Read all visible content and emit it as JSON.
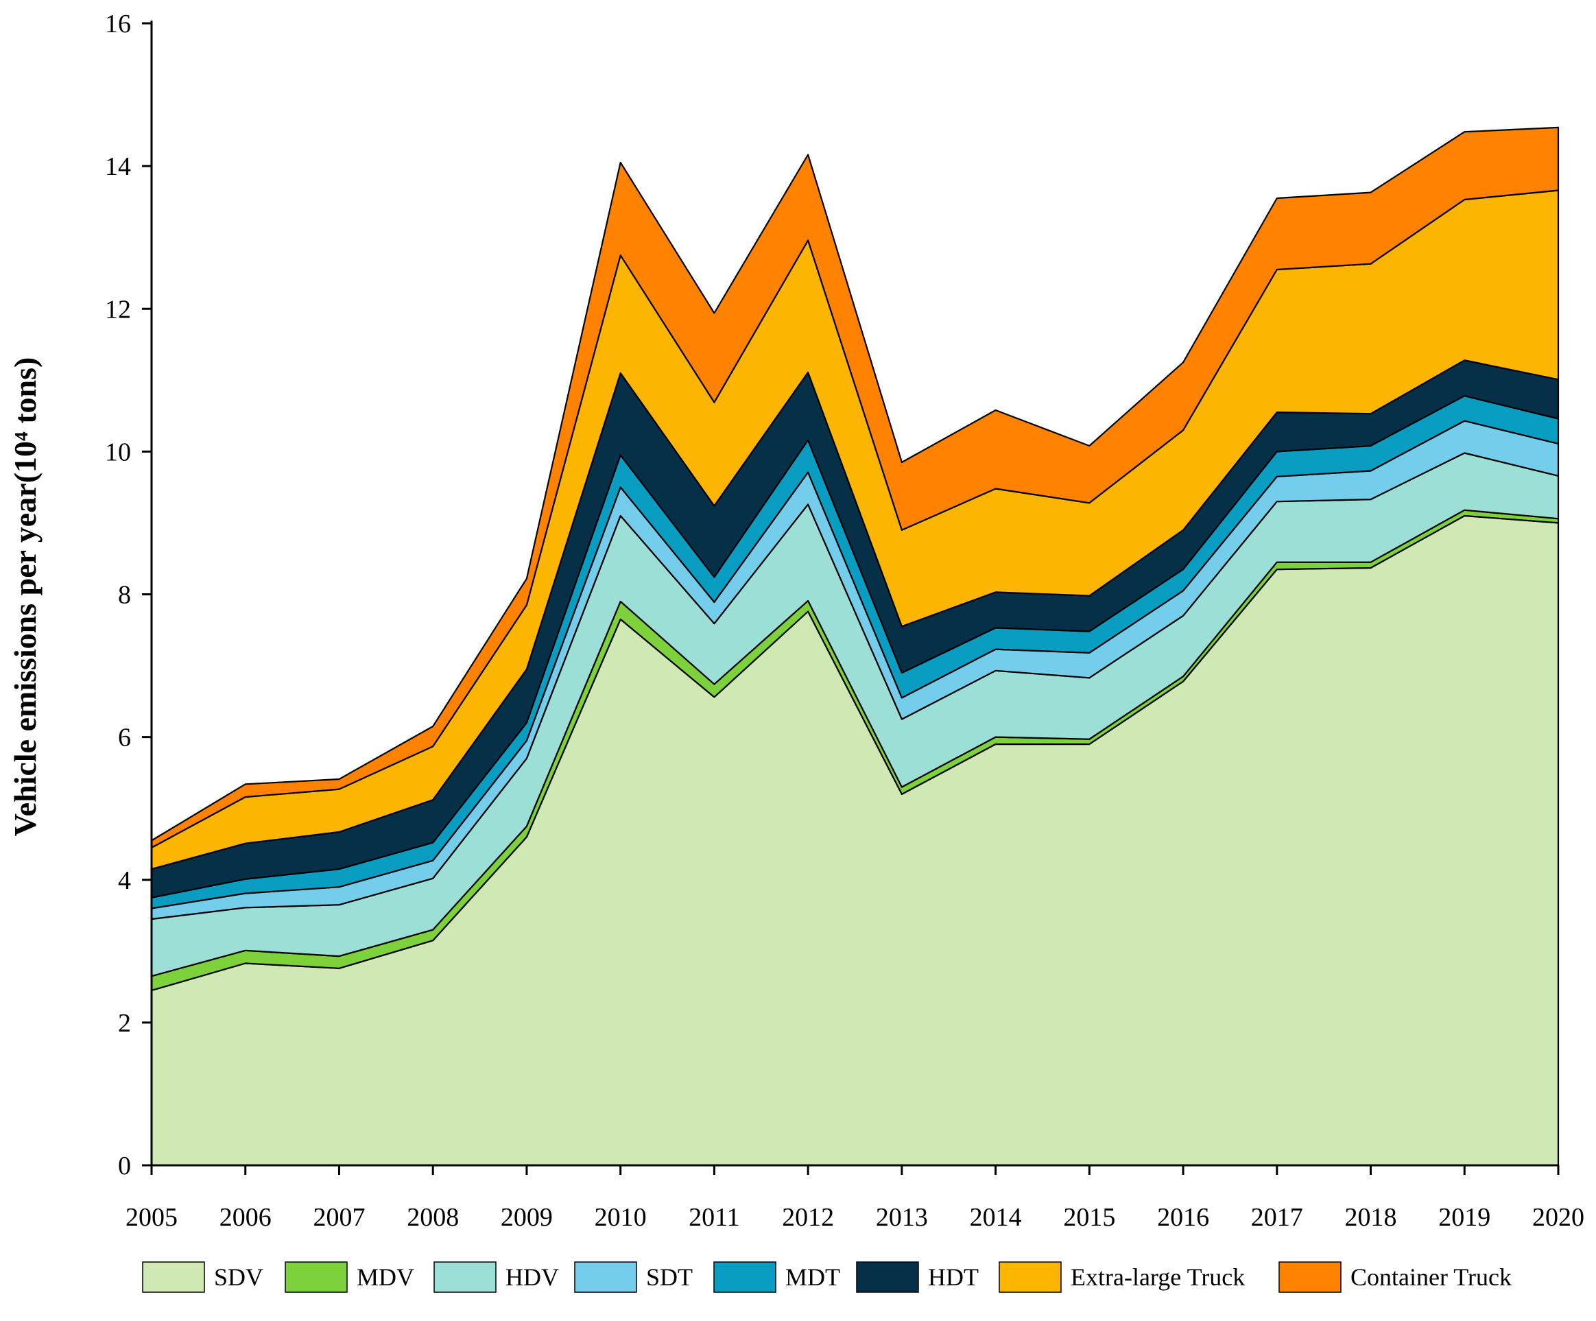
{
  "chart_data": {
    "type": "area",
    "stacked": true,
    "ylabel": "Vehicle emissions per year(10⁴ tons)",
    "xlabel": "",
    "title": "",
    "ylim": [
      0,
      16
    ],
    "yticks": [
      0,
      2,
      4,
      6,
      8,
      10,
      12,
      14,
      16
    ],
    "x": [
      "2005",
      "2006",
      "2007",
      "2008",
      "2009",
      "2010",
      "2011",
      "2012",
      "2013",
      "2014",
      "2015",
      "2016",
      "2017",
      "2018",
      "2019",
      "2020"
    ],
    "series": [
      {
        "name": "SDV",
        "color": "#D0E9B4",
        "values": [
          2.45,
          2.83,
          2.76,
          3.15,
          4.6,
          7.65,
          6.56,
          7.76,
          5.2,
          5.9,
          5.9,
          6.78,
          8.35,
          8.37,
          9.1,
          9.0
        ]
      },
      {
        "name": "MDV",
        "color": "#7DD13A",
        "values": [
          0.2,
          0.18,
          0.17,
          0.15,
          0.15,
          0.25,
          0.18,
          0.15,
          0.1,
          0.1,
          0.07,
          0.07,
          0.1,
          0.08,
          0.08,
          0.06
        ]
      },
      {
        "name": "HDV",
        "color": "#9CDFD6",
        "values": [
          0.8,
          0.6,
          0.72,
          0.72,
          0.95,
          1.2,
          0.85,
          1.35,
          0.95,
          0.93,
          0.86,
          0.85,
          0.85,
          0.88,
          0.8,
          0.6
        ]
      },
      {
        "name": "SDT",
        "color": "#74CDEA",
        "values": [
          0.15,
          0.2,
          0.25,
          0.25,
          0.25,
          0.4,
          0.3,
          0.45,
          0.3,
          0.3,
          0.35,
          0.35,
          0.35,
          0.4,
          0.45,
          0.45
        ]
      },
      {
        "name": "MDT",
        "color": "#0A9DC2",
        "values": [
          0.15,
          0.2,
          0.25,
          0.25,
          0.25,
          0.45,
          0.35,
          0.45,
          0.35,
          0.3,
          0.3,
          0.3,
          0.35,
          0.35,
          0.35,
          0.35
        ]
      },
      {
        "name": "HDT",
        "color": "#062F48",
        "values": [
          0.4,
          0.5,
          0.52,
          0.6,
          0.75,
          1.15,
          1.0,
          0.95,
          0.65,
          0.5,
          0.5,
          0.55,
          0.55,
          0.45,
          0.5,
          0.55
        ]
      },
      {
        "name": "Extra-large Truck",
        "color": "#FCB500",
        "values": [
          0.3,
          0.65,
          0.6,
          0.75,
          0.9,
          1.65,
          1.45,
          1.85,
          1.35,
          1.45,
          1.3,
          1.4,
          2.0,
          2.1,
          2.25,
          2.65
        ]
      },
      {
        "name": "Container Truck",
        "color": "#FF8200",
        "values": [
          0.1,
          0.18,
          0.14,
          0.28,
          0.37,
          1.3,
          1.25,
          1.2,
          0.95,
          1.1,
          0.8,
          0.95,
          1.0,
          1.0,
          0.95,
          0.88
        ]
      }
    ],
    "legend_position": "bottom"
  }
}
